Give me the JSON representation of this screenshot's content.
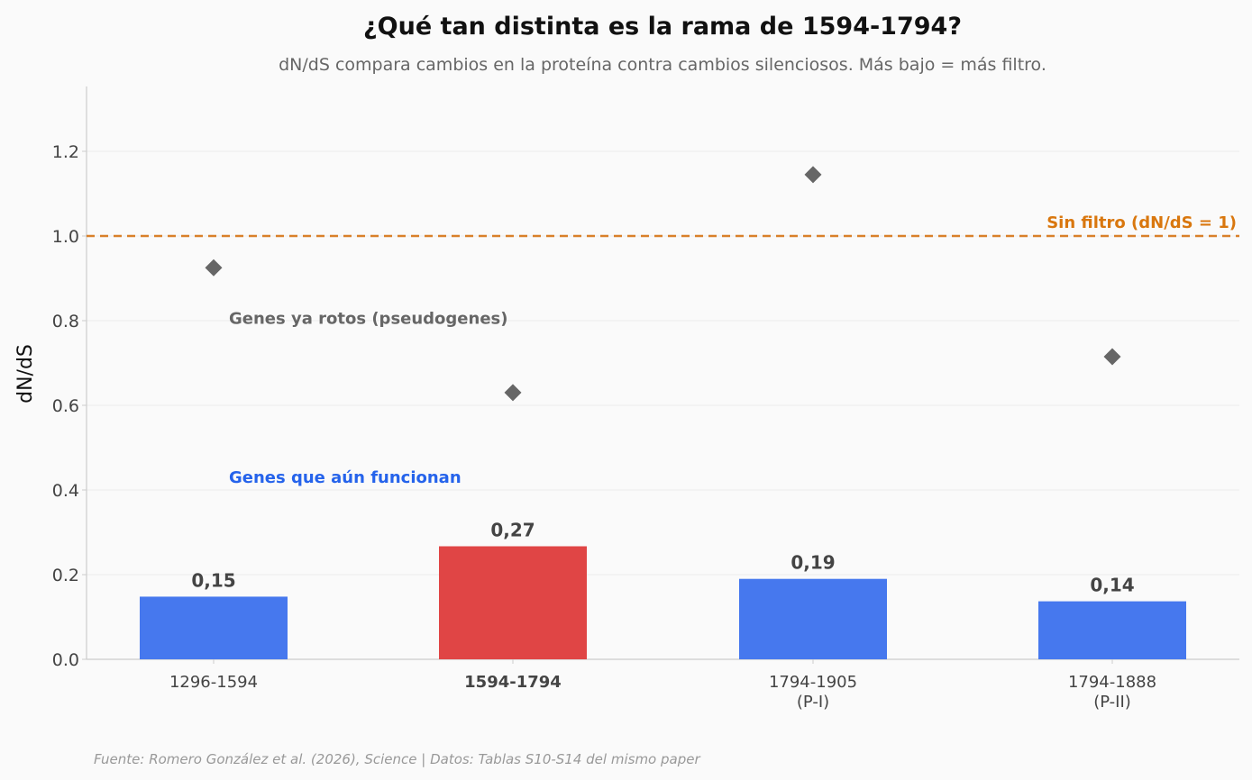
{
  "chart_data": {
    "type": "bar",
    "title": "¿Qué tan distinta es la rama de 1594-1794?",
    "subtitle": "dN/dS compara cambios en la proteína contra cambios silenciosos. Más bajo = más filtro.",
    "ylabel": "dN/dS",
    "ylim": [
      0,
      1.35
    ],
    "yticks": [
      "0.0",
      "0.2",
      "0.4",
      "0.6",
      "0.8",
      "1.0",
      "1.2"
    ],
    "grid": true,
    "categories": [
      {
        "line1": "1296-1594",
        "line2": ""
      },
      {
        "line1": "1594-1794",
        "line2": ""
      },
      {
        "line1": "1794-1905",
        "line2": "(P-I)"
      },
      {
        "line1": "1794-1888",
        "line2": "(P-II)"
      }
    ],
    "highlight_index": 1,
    "series": [
      {
        "name": "Genes que aún funcionan",
        "kind": "bar",
        "values": [
          0.148,
          0.267,
          0.19,
          0.137
        ],
        "labels": [
          "0,15",
          "0,27",
          "0,19",
          "0,14"
        ],
        "color": "#4678ee",
        "highlight_color": "#e04545"
      },
      {
        "name": "Genes ya rotos (pseudogenes)",
        "kind": "scatter",
        "marker": "diamond",
        "values": [
          0.925,
          0.63,
          1.145,
          0.715
        ],
        "color": "#666666"
      }
    ],
    "reference_line": {
      "y": 1.0,
      "label": "Sin filtro (dN/dS = 1)",
      "color": "#d9802a",
      "label_color": "#d9770e"
    },
    "annotations": {
      "pseudogenes": {
        "text": "Genes ya rotos (pseudogenes)",
        "y": 0.805,
        "color": "#666666"
      },
      "functional": {
        "text": "Genes que aún funcionan",
        "y": 0.43,
        "color": "#2563eb"
      }
    },
    "highlight_text_color": "#d62828",
    "source": "Fuente: Romero González et al. (2026), Science | Datos: Tablas S10-S14 del mismo paper"
  }
}
